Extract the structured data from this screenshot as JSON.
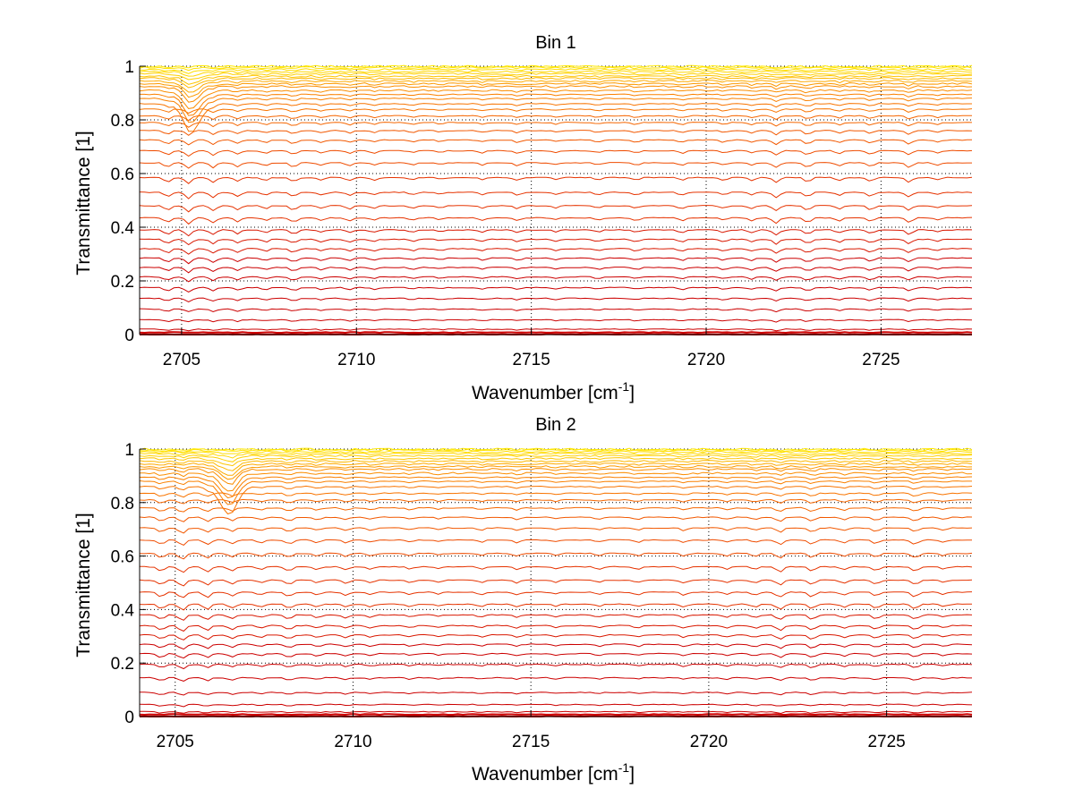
{
  "figure": {
    "background": "#ffffff",
    "axis_color": "#000000",
    "grid_color": "#000000"
  },
  "chart_data": [
    {
      "type": "line",
      "title": "Bin 1",
      "xlabel_main": "Wavenumber [cm",
      "xlabel_sup": "-1",
      "xlabel_tail": "]",
      "ylabel": "Transmittance [1]",
      "xlim": [
        2703.8,
        2727.6
      ],
      "ylim": [
        0,
        1
      ],
      "xticks": [
        2705,
        2710,
        2715,
        2720,
        2725
      ],
      "xticklabels": [
        "2705",
        "2710",
        "2715",
        "2720",
        "2725"
      ],
      "yticks": [
        0,
        0.2,
        0.4,
        0.6,
        0.8,
        1
      ],
      "yticklabels": [
        "0",
        "0.2",
        "0.4",
        "0.6",
        "0.8",
        "1"
      ],
      "grid": "dotted",
      "legend": "none",
      "series": [
        {
          "level": 0.0,
          "color": "#cc0000"
        },
        {
          "level": 0.008,
          "color": "#cc0000"
        },
        {
          "level": 0.02,
          "color": "#cc0000"
        },
        {
          "level": 0.055,
          "color": "#cc0000"
        },
        {
          "level": 0.095,
          "color": "#cc0000"
        },
        {
          "level": 0.135,
          "color": "#cc0000"
        },
        {
          "level": 0.175,
          "color": "#cc0000"
        },
        {
          "level": 0.215,
          "color": "#cc0000"
        },
        {
          "level": 0.25,
          "color": "#cc0000"
        },
        {
          "level": 0.285,
          "color": "#cc0000"
        },
        {
          "level": 0.32,
          "color": "#d91800"
        },
        {
          "level": 0.355,
          "color": "#d91800"
        },
        {
          "level": 0.39,
          "color": "#d91800"
        },
        {
          "level": 0.435,
          "color": "#e63300"
        },
        {
          "level": 0.48,
          "color": "#e63300"
        },
        {
          "level": 0.53,
          "color": "#e63300"
        },
        {
          "level": 0.585,
          "color": "#e63300"
        },
        {
          "level": 0.64,
          "color": "#ef4c00"
        },
        {
          "level": 0.685,
          "color": "#ef4c00"
        },
        {
          "level": 0.725,
          "color": "#f25800"
        },
        {
          "level": 0.76,
          "color": "#f25800"
        },
        {
          "level": 0.79,
          "color": "#f66600"
        },
        {
          "level": 0.815,
          "color": "#f66600"
        },
        {
          "level": 0.84,
          "color": "#f87400"
        },
        {
          "level": 0.86,
          "color": "#f87400"
        },
        {
          "level": 0.88,
          "color": "#fa8000"
        },
        {
          "level": 0.895,
          "color": "#fa8000"
        },
        {
          "level": 0.91,
          "color": "#fb8d00"
        },
        {
          "level": 0.925,
          "color": "#fb8d00"
        },
        {
          "level": 0.935,
          "color": "#fc9a00"
        },
        {
          "level": 0.945,
          "color": "#fdaa00"
        },
        {
          "level": 0.955,
          "color": "#fdb800"
        },
        {
          "level": 0.963,
          "color": "#fec500"
        },
        {
          "level": 0.972,
          "color": "#fed000"
        },
        {
          "level": 0.98,
          "color": "#ffd700"
        },
        {
          "level": 0.988,
          "color": "#ffdd00"
        },
        {
          "level": 0.995,
          "color": "#ffe200"
        },
        {
          "level": 1.0,
          "color": "#ffe800"
        }
      ]
    },
    {
      "type": "line",
      "title": "Bin 2",
      "xlabel_main": "Wavenumber [cm",
      "xlabel_sup": "-1",
      "xlabel_tail": "]",
      "ylabel": "Transmittance [1]",
      "xlim": [
        2704.0,
        2727.4
      ],
      "ylim": [
        0,
        1
      ],
      "xticks": [
        2705,
        2710,
        2715,
        2720,
        2725
      ],
      "xticklabels": [
        "2705",
        "2710",
        "2715",
        "2720",
        "2725"
      ],
      "yticks": [
        0,
        0.2,
        0.4,
        0.6,
        0.8,
        1
      ],
      "yticklabels": [
        "0",
        "0.2",
        "0.4",
        "0.6",
        "0.8",
        "1"
      ],
      "grid": "dotted",
      "legend": "none",
      "series": [
        {
          "level": 0.0,
          "color": "#cc0000"
        },
        {
          "level": 0.008,
          "color": "#cc0000"
        },
        {
          "level": 0.018,
          "color": "#cc0000"
        },
        {
          "level": 0.045,
          "color": "#cc0000"
        },
        {
          "level": 0.09,
          "color": "#cc0000"
        },
        {
          "level": 0.145,
          "color": "#cc0000"
        },
        {
          "level": 0.195,
          "color": "#cc0000"
        },
        {
          "level": 0.235,
          "color": "#cc0000"
        },
        {
          "level": 0.27,
          "color": "#cc0000"
        },
        {
          "level": 0.305,
          "color": "#d91800"
        },
        {
          "level": 0.34,
          "color": "#d91800"
        },
        {
          "level": 0.38,
          "color": "#d91800"
        },
        {
          "level": 0.42,
          "color": "#e63300"
        },
        {
          "level": 0.465,
          "color": "#e63300"
        },
        {
          "level": 0.51,
          "color": "#e63300"
        },
        {
          "level": 0.56,
          "color": "#e63300"
        },
        {
          "level": 0.61,
          "color": "#ef4c00"
        },
        {
          "level": 0.66,
          "color": "#ef4c00"
        },
        {
          "level": 0.705,
          "color": "#f25800"
        },
        {
          "level": 0.745,
          "color": "#f25800"
        },
        {
          "level": 0.78,
          "color": "#f66600"
        },
        {
          "level": 0.81,
          "color": "#f66600"
        },
        {
          "level": 0.835,
          "color": "#f87400"
        },
        {
          "level": 0.86,
          "color": "#f87400"
        },
        {
          "level": 0.88,
          "color": "#fa8000"
        },
        {
          "level": 0.895,
          "color": "#fa8000"
        },
        {
          "level": 0.91,
          "color": "#fb8d00"
        },
        {
          "level": 0.925,
          "color": "#fb8d00"
        },
        {
          "level": 0.935,
          "color": "#fc9a00"
        },
        {
          "level": 0.945,
          "color": "#fdaa00"
        },
        {
          "level": 0.955,
          "color": "#fdb800"
        },
        {
          "level": 0.965,
          "color": "#fec500"
        },
        {
          "level": 0.975,
          "color": "#fed000"
        },
        {
          "level": 0.983,
          "color": "#ffd700"
        },
        {
          "level": 0.99,
          "color": "#ffdd00"
        },
        {
          "level": 0.996,
          "color": "#ffe200"
        },
        {
          "level": 1.0,
          "color": "#ffe800"
        }
      ]
    }
  ]
}
